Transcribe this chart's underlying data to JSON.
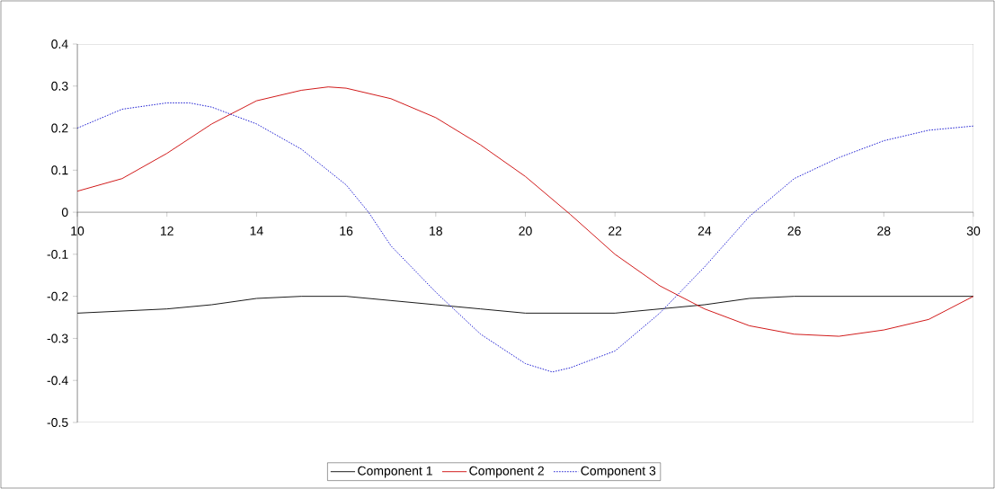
{
  "chart_data": {
    "type": "line",
    "xlim": [
      10,
      30
    ],
    "xticks": [
      10,
      12,
      14,
      16,
      18,
      20,
      22,
      24,
      26,
      28,
      30
    ],
    "ylim": [
      -0.5,
      0.4
    ],
    "yticks": [
      -0.5,
      -0.4,
      -0.3,
      -0.2,
      -0.1,
      0,
      0.1,
      0.2,
      0.3,
      0.4
    ],
    "grid": false,
    "legend": "bottom",
    "marker": "none",
    "series": [
      {
        "name": "Component 1",
        "color": "#000000",
        "line_style": "solid",
        "x": [
          10,
          11,
          12,
          13,
          14,
          15,
          16,
          17,
          18,
          19,
          20,
          21,
          22,
          23,
          24,
          25,
          26,
          27,
          28,
          29,
          30
        ],
        "values": [
          -0.24,
          -0.235,
          -0.23,
          -0.22,
          -0.205,
          -0.2,
          -0.2,
          -0.21,
          -0.22,
          -0.23,
          -0.24,
          -0.24,
          -0.24,
          -0.23,
          -0.22,
          -0.205,
          -0.2,
          -0.2,
          -0.2,
          -0.2,
          -0.2
        ]
      },
      {
        "name": "Component 2",
        "color": "#cc0000",
        "line_style": "solid",
        "x": [
          10,
          11,
          12,
          13,
          14,
          15,
          15.6,
          16,
          17,
          18,
          19,
          20,
          21,
          22,
          23,
          24,
          25,
          26,
          27,
          28,
          29,
          30
        ],
        "values": [
          0.05,
          0.08,
          0.14,
          0.21,
          0.265,
          0.29,
          0.298,
          0.295,
          0.27,
          0.225,
          0.16,
          0.085,
          -0.005,
          -0.1,
          -0.175,
          -0.23,
          -0.27,
          -0.29,
          -0.295,
          -0.28,
          -0.255,
          -0.2
        ]
      },
      {
        "name": "Component 3",
        "color": "#0000cc",
        "line_style": "dotted",
        "x": [
          10,
          11,
          12,
          12.5,
          13,
          14,
          15,
          16,
          16.5,
          17,
          18,
          19,
          20,
          20.6,
          21,
          22,
          23,
          24,
          25,
          26,
          27,
          28,
          29,
          30
        ],
        "values": [
          0.2,
          0.245,
          0.26,
          0.26,
          0.25,
          0.21,
          0.15,
          0.065,
          0,
          -0.08,
          -0.19,
          -0.29,
          -0.36,
          -0.38,
          -0.37,
          -0.33,
          -0.24,
          -0.13,
          -0.01,
          0.08,
          0.13,
          0.17,
          0.195,
          0.205
        ]
      }
    ]
  }
}
